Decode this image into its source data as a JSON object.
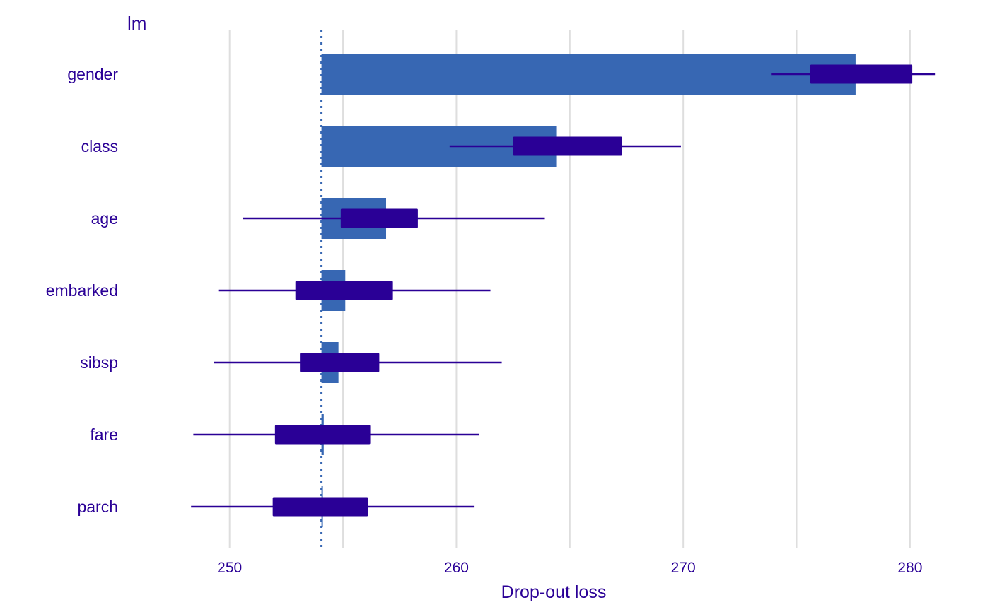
{
  "chart_data": {
    "type": "bar",
    "title": "lm",
    "xlabel": "Drop-out loss",
    "ylabel": "",
    "xlim": [
      245.8,
      281.5
    ],
    "x_ticks": [
      250,
      260,
      270,
      280
    ],
    "baseline": 254.05,
    "categories": [
      "gender",
      "class",
      "age",
      "embarked",
      "sibsp",
      "fare",
      "parch"
    ],
    "series": [
      {
        "values": [
          277.6,
          264.4,
          256.9,
          255.1,
          254.8,
          254.15,
          254.05
        ]
      }
    ],
    "boxplots": [
      {
        "category": "gender",
        "min": 273.9,
        "q1": 275.6,
        "q3": 280.1,
        "max": 281.1
      },
      {
        "category": "class",
        "min": 259.7,
        "q1": 262.5,
        "q3": 267.3,
        "max": 269.9
      },
      {
        "category": "age",
        "min": 250.6,
        "q1": 254.9,
        "q3": 258.3,
        "max": 263.9
      },
      {
        "category": "embarked",
        "min": 249.5,
        "q1": 252.9,
        "q3": 257.2,
        "max": 261.5
      },
      {
        "category": "sibsp",
        "min": 249.3,
        "q1": 253.1,
        "q3": 256.6,
        "max": 262.0
      },
      {
        "category": "fare",
        "min": 248.4,
        "q1": 252.0,
        "q3": 256.2,
        "max": 261.0
      },
      {
        "category": "parch",
        "min": 248.3,
        "q1": 251.9,
        "q3": 256.1,
        "max": 260.8
      }
    ],
    "grid": true,
    "colors": {
      "bar": "#3767b3",
      "box": "#2a0096",
      "text": "#2a0096",
      "grid": "#dedede",
      "baseline": "#3767b3"
    }
  }
}
